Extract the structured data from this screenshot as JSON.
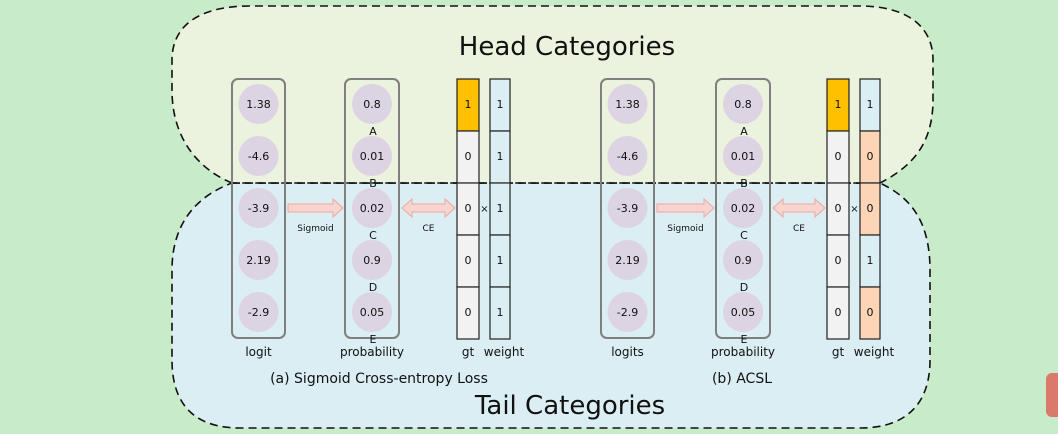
{
  "regions": {
    "head_title": "Head Categories",
    "tail_title": "Tail Categories"
  },
  "colors": {
    "background": "#c8ecc9",
    "head_fill": "#ebf2de",
    "tail_fill": "#dbeef3",
    "circle": "#dcd3e3",
    "gt_positive": "#ffc000",
    "gt_cell": "#f2f2f2",
    "weight_one": "#dbeef3",
    "weight_zero": "#fbd5b5",
    "arrow": "#f8d3d0",
    "arrow_stroke": "#eaa99f"
  },
  "panels": [
    {
      "caption": "(a) Sigmoid Cross-entropy Loss",
      "logit_label": "logit",
      "prob_label": "probability",
      "gt_label": "gt",
      "weight_label": "weight",
      "sigmoid_label": "Sigmoid",
      "ce_label": "CE",
      "times": "×",
      "logits": [
        "1.38",
        "-4.6",
        "-3.9",
        "2.19",
        "-2.9"
      ],
      "probabilities": [
        "0.8",
        "0.01",
        "0.02",
        "0.9",
        "0.05"
      ],
      "letters": [
        "A",
        "B",
        "C",
        "D",
        "E"
      ],
      "gt": [
        "1",
        "0",
        "0",
        "0",
        "0"
      ],
      "weight": [
        "1",
        "1",
        "1",
        "1",
        "1"
      ]
    },
    {
      "caption": "(b) ACSL",
      "logit_label": "logits",
      "prob_label": "probability",
      "gt_label": "gt",
      "weight_label": "weight",
      "sigmoid_label": "Sigmoid",
      "ce_label": "CE",
      "times": "×",
      "logits": [
        "1.38",
        "-4.6",
        "-3.9",
        "2.19",
        "-2.9"
      ],
      "probabilities": [
        "0.8",
        "0.01",
        "0.02",
        "0.9",
        "0.05"
      ],
      "letters": [
        "A",
        "B",
        "C",
        "D",
        "E"
      ],
      "gt": [
        "1",
        "0",
        "0",
        "0",
        "0"
      ],
      "weight": [
        "1",
        "0",
        "0",
        "1",
        "0"
      ]
    }
  ]
}
